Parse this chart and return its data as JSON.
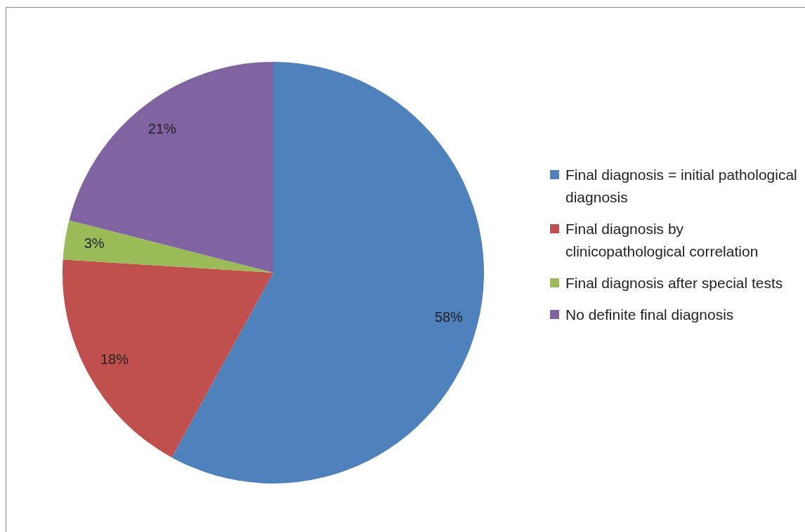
{
  "chart_data": {
    "type": "pie",
    "categories": [
      "Final diagnosis = initial pathological  diagnosis",
      "Final diagnosis by clinicopathological correlation",
      "Final diagnosis after special tests",
      "No definite final diagnosis"
    ],
    "values": [
      58,
      18,
      3,
      21
    ],
    "colors": [
      "#4f81bd",
      "#c0504d",
      "#9bbb59",
      "#8064a2"
    ],
    "value_labels": [
      "58%",
      "18%",
      "3%",
      "21%"
    ],
    "legend": "right"
  }
}
